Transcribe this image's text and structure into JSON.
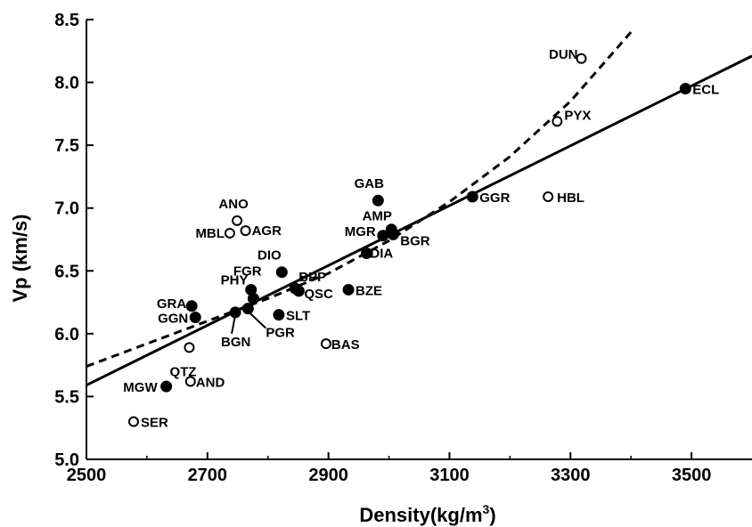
{
  "chart_data": {
    "type": "scatter",
    "title": "",
    "xlabel": "Density(kg/m",
    "xlabel_sup": "3",
    "xlabel_close": ")",
    "ylabel": "Vp (km/s)",
    "xlim": [
      2500,
      3600
    ],
    "ylim": [
      5.0,
      8.5
    ],
    "x_ticks": [
      2500,
      2700,
      2900,
      3100,
      3300,
      3500
    ],
    "x_tick_labels": [
      "2500",
      "2700",
      "2900",
      "3100",
      "3300",
      "3500"
    ],
    "y_ticks": [
      5.0,
      5.5,
      6.0,
      6.5,
      7.0,
      7.5,
      8.0,
      8.5
    ],
    "y_tick_labels": [
      "5.0",
      "5.5",
      "6.0",
      "6.5",
      "7.0",
      "7.5",
      "8.0",
      "8.5"
    ],
    "grid": false,
    "points": [
      {
        "label": "DUN",
        "x": 3318,
        "y": 8.19,
        "filled": false
      },
      {
        "label": "ECL",
        "x": 3490,
        "y": 7.95,
        "filled": true
      },
      {
        "label": "PYX",
        "x": 3278,
        "y": 7.69,
        "filled": false
      },
      {
        "label": "GGR",
        "x": 3138,
        "y": 7.09,
        "filled": true
      },
      {
        "label": "HBL",
        "x": 3263,
        "y": 7.09,
        "filled": false
      },
      {
        "label": "GAB",
        "x": 2982,
        "y": 7.06,
        "filled": true
      },
      {
        "label": "AMP",
        "x": 3004,
        "y": 6.83,
        "filled": true
      },
      {
        "label": "MGR",
        "x": 2990,
        "y": 6.78,
        "filled": true
      },
      {
        "label": "BGR",
        "x": 3007,
        "y": 6.79,
        "filled": true
      },
      {
        "label": "DIA",
        "x": 2963,
        "y": 6.64,
        "filled": true
      },
      {
        "label": "ANO",
        "x": 2749,
        "y": 6.9,
        "filled": false
      },
      {
        "label": "MBL",
        "x": 2737,
        "y": 6.8,
        "filled": false
      },
      {
        "label": "AGR",
        "x": 2763,
        "y": 6.82,
        "filled": false
      },
      {
        "label": "DIO",
        "x": 2823,
        "y": 6.49,
        "filled": true
      },
      {
        "label": "FGR",
        "x": 2772,
        "y": 6.35,
        "filled": true
      },
      {
        "label": "BPP",
        "x": 2845,
        "y": 6.36,
        "filled": true
      },
      {
        "label": "QSC",
        "x": 2851,
        "y": 6.34,
        "filled": true
      },
      {
        "label": "BZE",
        "x": 2933,
        "y": 6.35,
        "filled": true
      },
      {
        "label": "GRA",
        "x": 2674,
        "y": 6.22,
        "filled": true
      },
      {
        "label": "PHY",
        "x": 2776,
        "y": 6.28,
        "filled": true
      },
      {
        "label": "GGN",
        "x": 2680,
        "y": 6.13,
        "filled": true
      },
      {
        "label": "BGN",
        "x": 2746,
        "y": 6.17,
        "filled": true
      },
      {
        "label": "PGR",
        "x": 2767,
        "y": 6.2,
        "filled": true
      },
      {
        "label": "SLT",
        "x": 2818,
        "y": 6.15,
        "filled": true
      },
      {
        "label": "BAS",
        "x": 2896,
        "y": 5.92,
        "filled": false
      },
      {
        "label": "QTZ",
        "x": 2670,
        "y": 5.89,
        "filled": false
      },
      {
        "label": "MGW",
        "x": 2632,
        "y": 5.58,
        "filled": true
      },
      {
        "label": "AND",
        "x": 2672,
        "y": 5.62,
        "filled": false
      },
      {
        "label": "SER",
        "x": 2578,
        "y": 5.3,
        "filled": false
      }
    ],
    "fit_lines": [
      {
        "style": "solid",
        "form": "linear",
        "x": [
          2500,
          3600
        ],
        "y": [
          5.59,
          8.21
        ]
      },
      {
        "style": "dashed",
        "form": "curve",
        "x": [
          2500,
          2600,
          2700,
          2800,
          2900,
          3000,
          3100,
          3200,
          3300,
          3400
        ],
        "y": [
          5.74,
          5.92,
          6.1,
          6.28,
          6.48,
          6.74,
          7.05,
          7.41,
          7.85,
          8.4
        ]
      }
    ]
  }
}
